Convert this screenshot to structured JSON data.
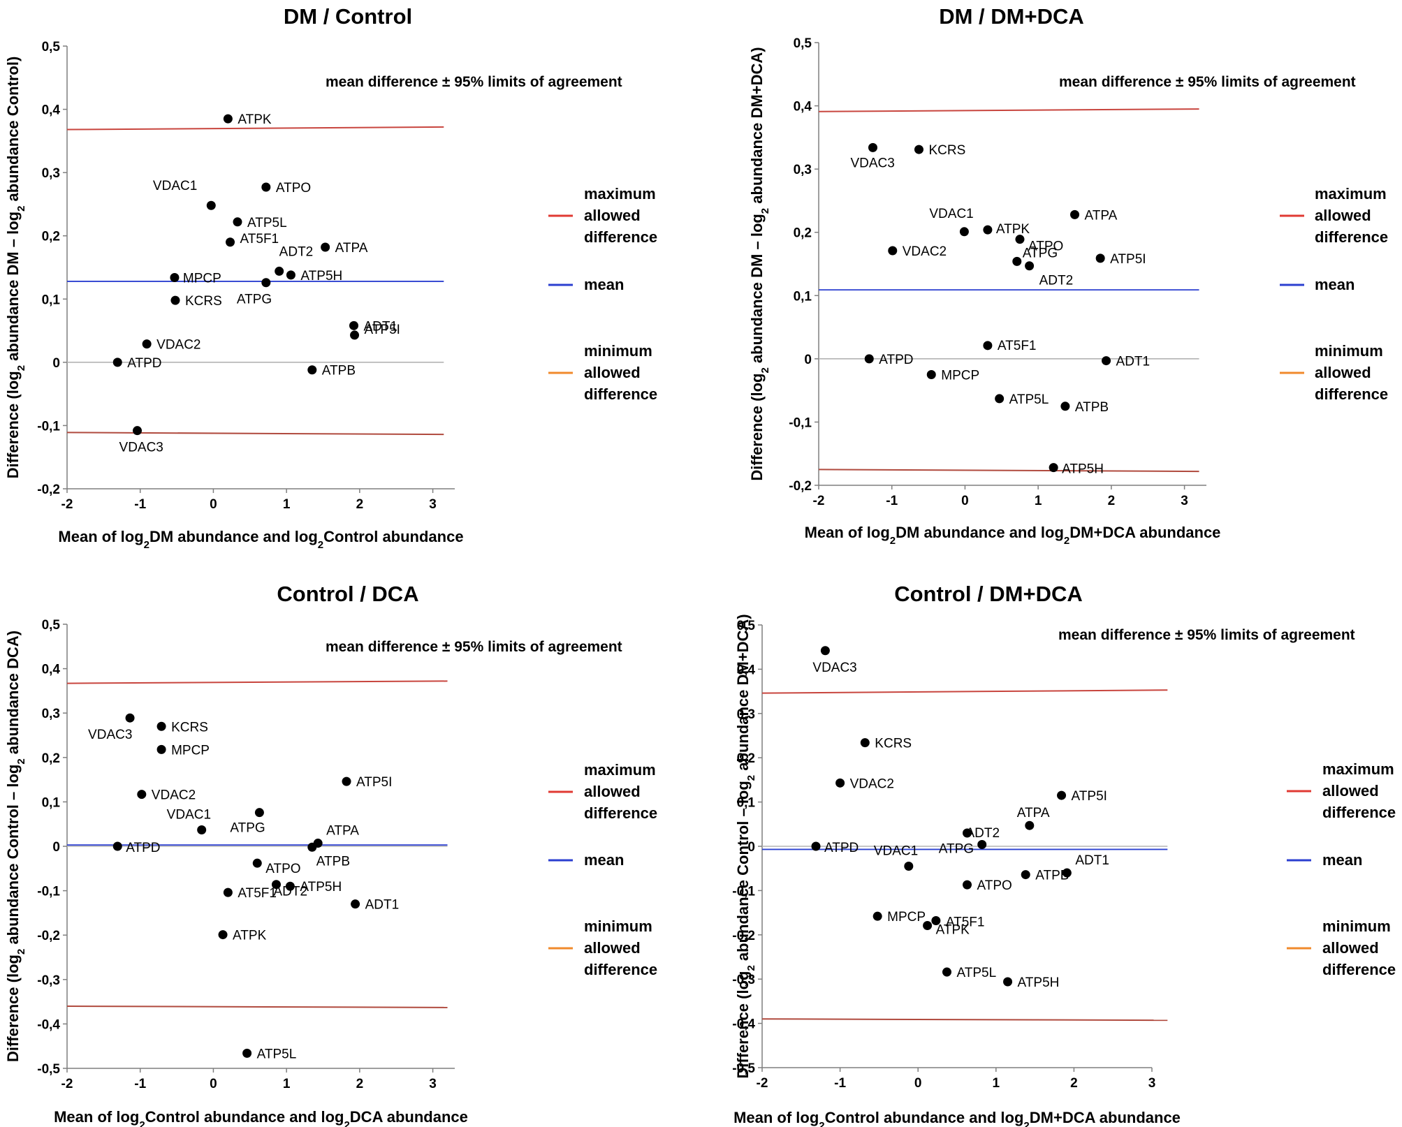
{
  "chart_data": [
    {
      "type": "scatter",
      "title": "DM / Control",
      "ylabel": {
        "pre": "Difference (log",
        "sub1": "2",
        "mid": " abundance DM – log",
        "sub2": "2",
        "post": " abundance Control)"
      },
      "xlabel": {
        "pre": "Mean of log",
        "sub1": "2",
        "mid": "DM abundance and log",
        "sub2": "2",
        "post": "Control abundance"
      },
      "xlim": [
        -2,
        3.3
      ],
      "ylim": [
        -0.2,
        0.5
      ],
      "xticks": [
        -2,
        -1,
        0,
        1,
        2,
        3
      ],
      "yticks": [
        -0.2,
        -0.1,
        0,
        0.1,
        0.2,
        0.3,
        0.4,
        0.5
      ],
      "ytick_labels": [
        "-0,2",
        "-0,1",
        "0",
        "0,1",
        "0,2",
        "0,3",
        "0,4",
        "0,5"
      ],
      "annotation": "mean difference ± 95% limits of agreement",
      "lines": {
        "upper": [
          0.368,
          0.372
        ],
        "mean": [
          0.128,
          0.128
        ],
        "zero": [
          0,
          0
        ],
        "lower": [
          -0.111,
          -0.114
        ],
        "x_end": 3.15
      },
      "points": [
        {
          "label": "ATPK",
          "x": 0.2,
          "y": 0.385
        },
        {
          "label": "ATPO",
          "x": 0.72,
          "y": 0.277
        },
        {
          "label": "VDAC1",
          "x": -0.03,
          "y": 0.248
        },
        {
          "label": "ATP5L",
          "x": 0.33,
          "y": 0.222
        },
        {
          "label": "AT5F1",
          "x": 0.23,
          "y": 0.19
        },
        {
          "label": "ATPA",
          "x": 1.53,
          "y": 0.182
        },
        {
          "label": "ADT2",
          "x": 0.9,
          "y": 0.144
        },
        {
          "label": "ATP5H",
          "x": 1.06,
          "y": 0.138
        },
        {
          "label": "MPCP",
          "x": -0.53,
          "y": 0.134
        },
        {
          "label": "ATPG",
          "x": 0.72,
          "y": 0.126
        },
        {
          "label": "KCRS",
          "x": -0.52,
          "y": 0.098
        },
        {
          "label": "ADT1",
          "x": 1.92,
          "y": 0.058
        },
        {
          "label": "ATP5I",
          "x": 1.93,
          "y": 0.043
        },
        {
          "label": "VDAC2",
          "x": -0.91,
          "y": 0.029
        },
        {
          "label": "ATPD",
          "x": -1.31,
          "y": 0.0
        },
        {
          "label": "ATPB",
          "x": 1.35,
          "y": -0.012
        },
        {
          "label": "VDAC3",
          "x": -1.04,
          "y": -0.108
        }
      ],
      "legend": [
        {
          "label": "maximum allowed difference",
          "lines": [
            "maximum",
            "allowed",
            "difference"
          ],
          "color": "#e03a33"
        },
        {
          "label": "mean",
          "lines": [
            "mean"
          ],
          "color": "#2b3fd0"
        },
        {
          "label": "minimum allowed difference",
          "lines": [
            "minimum",
            "allowed",
            "difference"
          ],
          "color": "#f08a2c"
        }
      ]
    },
    {
      "type": "scatter",
      "title": "DM / DM+DCA",
      "ylabel": {
        "pre": "Difference (log",
        "sub1": "2",
        "mid": " abundance DM – log",
        "sub2": "2",
        "post": " abundance DM+DCA)"
      },
      "xlabel": {
        "pre": "Mean of log",
        "sub1": "2",
        "mid": "DM abundance and log",
        "sub2": "2",
        "post": "DM+DCA abundance"
      },
      "xlim": [
        -2,
        3.3
      ],
      "ylim": [
        -0.2,
        0.5
      ],
      "xticks": [
        -2,
        -1,
        0,
        1,
        2,
        3
      ],
      "yticks": [
        -0.2,
        -0.1,
        0,
        0.1,
        0.2,
        0.3,
        0.4,
        0.5
      ],
      "ytick_labels": [
        "-0,2",
        "-0,1",
        "0",
        "0,1",
        "0,2",
        "0,3",
        "0,4",
        "0,5"
      ],
      "annotation": "mean difference ± 95% limits of agreement",
      "lines": {
        "upper": [
          0.391,
          0.395
        ],
        "mean": [
          0.109,
          0.109
        ],
        "zero": [
          0,
          0
        ],
        "lower": [
          -0.175,
          -0.178
        ],
        "x_end": 3.2
      },
      "points": [
        {
          "label": "VDAC3",
          "x": -1.26,
          "y": 0.334
        },
        {
          "label": "KCRS",
          "x": -0.63,
          "y": 0.331
        },
        {
          "label": "ATPA",
          "x": 1.5,
          "y": 0.228
        },
        {
          "label": "VDAC1",
          "x": -0.01,
          "y": 0.201
        },
        {
          "label": "ATPK",
          "x": 0.31,
          "y": 0.204
        },
        {
          "label": "ATPO",
          "x": 0.75,
          "y": 0.189
        },
        {
          "label": "VDAC2",
          "x": -0.99,
          "y": 0.171
        },
        {
          "label": "ATP5I",
          "x": 1.85,
          "y": 0.159
        },
        {
          "label": "ATPG",
          "x": 0.71,
          "y": 0.154
        },
        {
          "label": "ADT2",
          "x": 0.88,
          "y": 0.147
        },
        {
          "label": "AT5F1",
          "x": 0.31,
          "y": 0.021
        },
        {
          "label": "ATPD",
          "x": -1.31,
          "y": 0.0
        },
        {
          "label": "ADT1",
          "x": 1.93,
          "y": -0.003
        },
        {
          "label": "MPCP",
          "x": -0.46,
          "y": -0.025
        },
        {
          "label": "ATP5L",
          "x": 0.47,
          "y": -0.063
        },
        {
          "label": "ATPB",
          "x": 1.37,
          "y": -0.075
        },
        {
          "label": "ATP5H",
          "x": 1.21,
          "y": -0.172
        }
      ],
      "legend": [
        {
          "label": "maximum allowed difference",
          "lines": [
            "maximum",
            "allowed",
            "difference"
          ],
          "color": "#e03a33"
        },
        {
          "label": "mean",
          "lines": [
            "mean"
          ],
          "color": "#2b3fd0"
        },
        {
          "label": "minimum allowed difference",
          "lines": [
            "minimum",
            "allowed",
            "difference"
          ],
          "color": "#f08a2c"
        }
      ]
    },
    {
      "type": "scatter",
      "title": "Control / DCA",
      "ylabel": {
        "pre": "Difference (log",
        "sub1": "2",
        "mid": " abundance Control – log",
        "sub2": "2",
        "post": " abundance DCA)"
      },
      "xlabel": {
        "pre": "Mean of log",
        "sub1": "2",
        "mid": "Control abundance and log",
        "sub2": "2",
        "post": "DCA abundance"
      },
      "xlim": [
        -2,
        3.3
      ],
      "ylim": [
        -0.5,
        0.5
      ],
      "xticks": [
        -2,
        -1,
        0,
        1,
        2,
        3
      ],
      "yticks": [
        -0.5,
        -0.4,
        -0.3,
        -0.2,
        -0.1,
        0,
        0.1,
        0.2,
        0.3,
        0.4,
        0.5
      ],
      "ytick_labels": [
        "-0,5",
        "-0,4",
        "-0,3",
        "-0,2",
        "-0,1",
        "0",
        "0,1",
        "0,2",
        "0,3",
        "0,4",
        "0,5"
      ],
      "annotation": "mean difference ± 95% limits of agreement",
      "lines": {
        "upper": [
          0.367,
          0.372
        ],
        "mean": [
          0.003,
          0.003
        ],
        "zero": [
          0,
          0
        ],
        "lower": [
          -0.36,
          -0.363
        ],
        "x_end": 3.2
      },
      "points": [
        {
          "label": "VDAC3",
          "x": -1.14,
          "y": 0.289
        },
        {
          "label": "KCRS",
          "x": -0.71,
          "y": 0.27
        },
        {
          "label": "MPCP",
          "x": -0.71,
          "y": 0.218
        },
        {
          "label": "ATP5I",
          "x": 1.82,
          "y": 0.146
        },
        {
          "label": "VDAC2",
          "x": -0.98,
          "y": 0.117
        },
        {
          "label": "ATPG",
          "x": 0.63,
          "y": 0.076
        },
        {
          "label": "VDAC1",
          "x": -0.16,
          "y": 0.037
        },
        {
          "label": "ATPA",
          "x": 1.43,
          "y": 0.007
        },
        {
          "label": "ATPD",
          "x": -1.31,
          "y": 0.0
        },
        {
          "label": "ATPB",
          "x": 1.35,
          "y": -0.002
        },
        {
          "label": "ATPO",
          "x": 0.6,
          "y": -0.038
        },
        {
          "label": "ADT2",
          "x": 0.86,
          "y": -0.086
        },
        {
          "label": "ATP5H",
          "x": 1.05,
          "y": -0.09
        },
        {
          "label": "AT5F1",
          "x": 0.2,
          "y": -0.104
        },
        {
          "label": "ADT1",
          "x": 1.94,
          "y": -0.13
        },
        {
          "label": "ATPK",
          "x": 0.13,
          "y": -0.199
        },
        {
          "label": "ATP5L",
          "x": 0.46,
          "y": -0.466
        }
      ],
      "legend": [
        {
          "label": "maximum allowed difference",
          "lines": [
            "maximum",
            "allowed",
            "difference"
          ],
          "color": "#e03a33"
        },
        {
          "label": "mean",
          "lines": [
            "mean"
          ],
          "color": "#2b3fd0"
        },
        {
          "label": "minimum allowed difference",
          "lines": [
            "minimum",
            "allowed",
            "difference"
          ],
          "color": "#f08a2c"
        }
      ]
    },
    {
      "type": "scatter",
      "title": "Control / DM+DCA",
      "ylabel": {
        "pre": "Difference (log",
        "sub1": "2",
        "mid": " abundance Control – log",
        "sub2": "2",
        "post": " abundance DM+DCA)"
      },
      "xlabel": {
        "pre": "Mean of log",
        "sub1": "2",
        "mid": "Control abundance and log",
        "sub2": "2",
        "post": "DM+DCA abundance"
      },
      "xlim": [
        -2,
        3.0
      ],
      "ylim": [
        -0.5,
        0.5
      ],
      "xticks": [
        -2,
        -1,
        0,
        1,
        2,
        3
      ],
      "yticks": [
        -0.5,
        -0.4,
        -0.3,
        -0.2,
        -0.1,
        0,
        0.1,
        0.2,
        0.3,
        0.4,
        0.5
      ],
      "ytick_labels": [
        "-0,5",
        "-0,4",
        "-0,3",
        "-0,2",
        "-0,1",
        "0",
        "0,1",
        "0,2",
        "0,3",
        "0,4",
        "0,5"
      ],
      "annotation": "mean difference ± 95% limits of agreement",
      "lines": {
        "upper": [
          0.346,
          0.353
        ],
        "mean": [
          -0.007,
          -0.007
        ],
        "zero": [
          0,
          0
        ],
        "lower": [
          -0.39,
          -0.393
        ],
        "x_end": 3.2
      },
      "points": [
        {
          "label": "VDAC3",
          "x": -1.19,
          "y": 0.442
        },
        {
          "label": "KCRS",
          "x": -0.68,
          "y": 0.234
        },
        {
          "label": "VDAC2",
          "x": -1.0,
          "y": 0.143
        },
        {
          "label": "ATP5I",
          "x": 1.84,
          "y": 0.115
        },
        {
          "label": "ATPA",
          "x": 1.43,
          "y": 0.047
        },
        {
          "label": "ADT2",
          "x": 0.63,
          "y": 0.03
        },
        {
          "label": "ATPG",
          "x": 0.82,
          "y": 0.004
        },
        {
          "label": "ATPD",
          "x": -1.31,
          "y": 0.0
        },
        {
          "label": "VDAC1",
          "x": -0.12,
          "y": -0.045
        },
        {
          "label": "ADT1",
          "x": 1.91,
          "y": -0.06
        },
        {
          "label": "ATPB",
          "x": 1.38,
          "y": -0.064
        },
        {
          "label": "ATPO",
          "x": 0.63,
          "y": -0.087
        },
        {
          "label": "MPCP",
          "x": -0.52,
          "y": -0.158
        },
        {
          "label": "AT5F1",
          "x": 0.23,
          "y": -0.168
        },
        {
          "label": "ATPK",
          "x": 0.12,
          "y": -0.179
        },
        {
          "label": "ATP5L",
          "x": 0.37,
          "y": -0.284
        },
        {
          "label": "ATP5H",
          "x": 1.15,
          "y": -0.306
        }
      ],
      "legend": [
        {
          "label": "maximum allowed difference",
          "lines": [
            "maximum",
            "allowed",
            "difference"
          ],
          "color": "#e03a33"
        },
        {
          "label": "mean",
          "lines": [
            "mean"
          ],
          "color": "#2b3fd0"
        },
        {
          "label": "minimum allowed difference",
          "lines": [
            "minimum",
            "allowed",
            "difference"
          ],
          "color": "#f08a2c"
        }
      ]
    }
  ],
  "colors": {
    "upper_line": "#c8453e",
    "lower_line": "#b04a3e",
    "mean_line": "#2b3fd0",
    "zero_line": "#b3b3b3",
    "axis": "#7f7f7f",
    "point": "#000000"
  }
}
